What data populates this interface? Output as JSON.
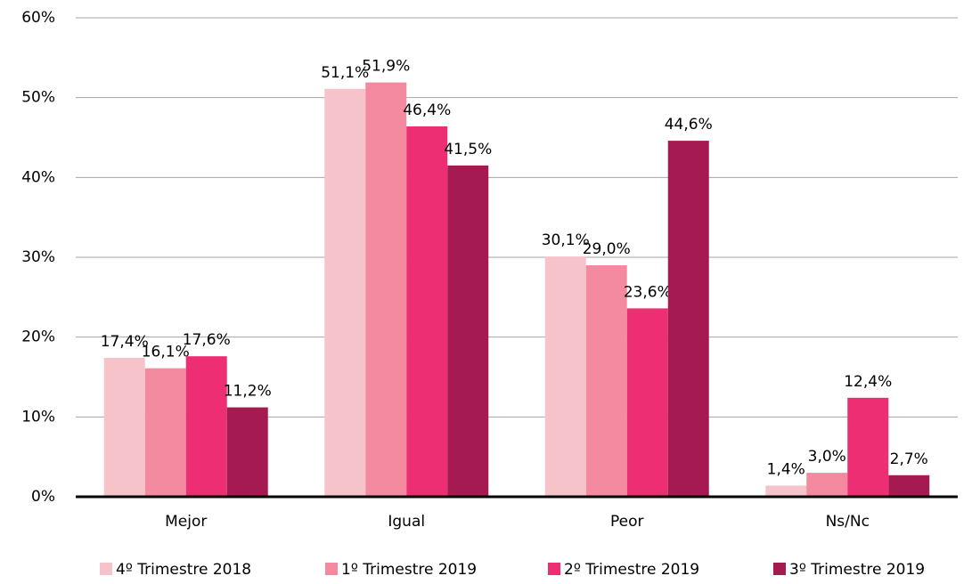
{
  "chart_data": {
    "type": "bar",
    "categories": [
      "Mejor",
      "Igual",
      "Peor",
      "Ns/Nc"
    ],
    "series": [
      {
        "name": "4º Trimestre 2018",
        "color": "#f7c3cb",
        "values": [
          17.4,
          51.1,
          30.1,
          1.4
        ],
        "value_labels": [
          "17,4%",
          "51,1%",
          "30,1%",
          "1,4%"
        ]
      },
      {
        "name": "1º Trimestre 2019",
        "color": "#f48aa0",
        "values": [
          16.1,
          51.9,
          29.0,
          3.0
        ],
        "value_labels": [
          "16,1%",
          "51,9%",
          "29,0%",
          "3,0%"
        ]
      },
      {
        "name": "2º Trimestre 2019",
        "color": "#ee2e72",
        "values": [
          17.6,
          46.4,
          23.6,
          12.4
        ],
        "value_labels": [
          "17,6%",
          "46,4%",
          "23,6%",
          "12,4%"
        ]
      },
      {
        "name": "3º Trimestre 2019",
        "color": "#a61a52",
        "values": [
          11.2,
          41.5,
          44.6,
          2.7
        ],
        "value_labels": [
          "11,2%",
          "41,5%",
          "44,6%",
          "2,7%"
        ]
      }
    ],
    "ylim": [
      0,
      60
    ],
    "yticks": [
      {
        "value": 0,
        "label": "0%"
      },
      {
        "value": 10,
        "label": "10%"
      },
      {
        "value": 20,
        "label": "20%"
      },
      {
        "value": 30,
        "label": "30%"
      },
      {
        "value": 40,
        "label": "40%"
      },
      {
        "value": 50,
        "label": "50%"
      },
      {
        "value": 60,
        "label": "60%"
      }
    ],
    "grid": true,
    "legend": "bottom"
  }
}
